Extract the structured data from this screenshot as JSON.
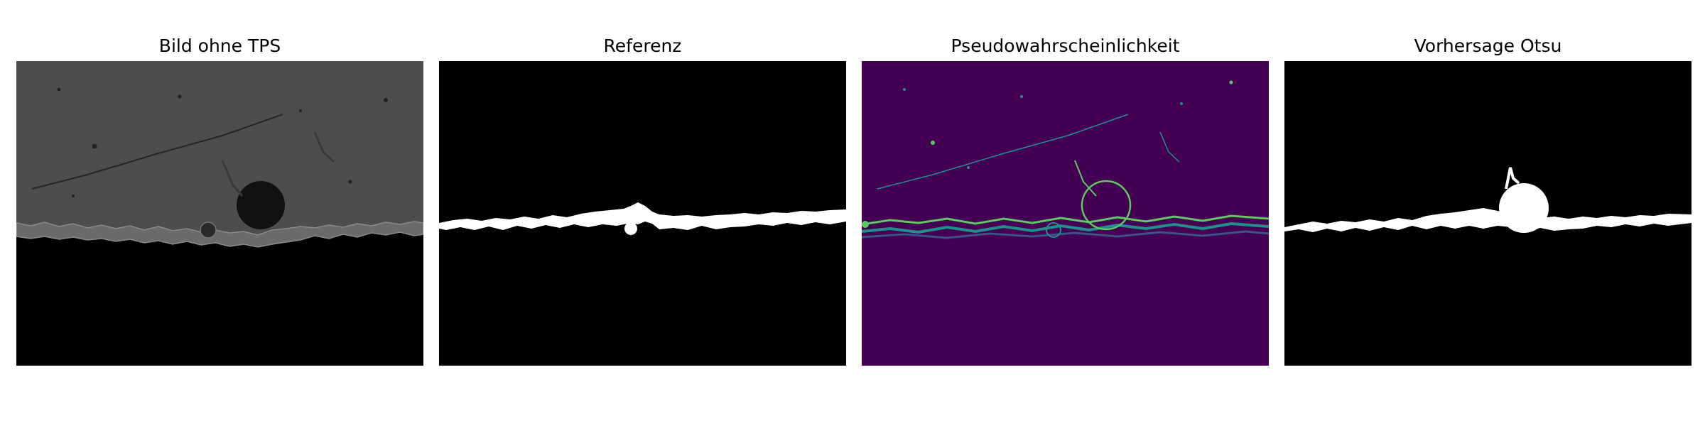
{
  "panels": [
    {
      "title": "Bild ohne TPS"
    },
    {
      "title": "Referenz"
    },
    {
      "title": "Pseudowahrscheinlichkeit"
    },
    {
      "title": "Vorhersage Otsu"
    }
  ],
  "colors": {
    "background": "#ffffff",
    "mask_background": "#000000",
    "mask_foreground": "#ffffff",
    "viridis_low": "#440154",
    "viridis_mid": "#21908c",
    "viridis_high": "#5ec962",
    "grayscale_surface": "#4b4b4b"
  }
}
